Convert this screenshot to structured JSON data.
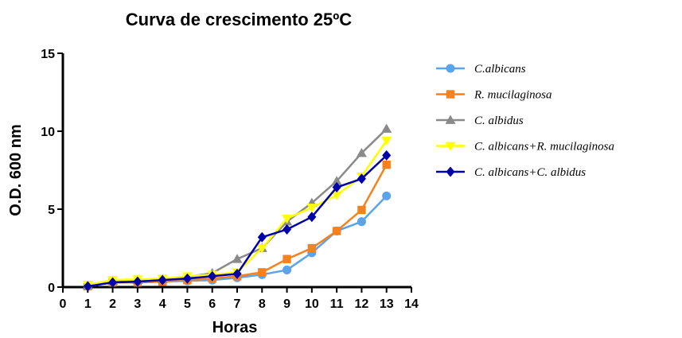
{
  "chart_data": {
    "type": "line",
    "title": "Curva de crescimento 25ºC",
    "xlabel": "Horas",
    "ylabel": "O.D. 600 nm",
    "xlim": [
      0,
      14
    ],
    "ylim": [
      0,
      15
    ],
    "x_ticks": [
      0,
      1,
      2,
      3,
      4,
      5,
      6,
      7,
      8,
      9,
      10,
      11,
      12,
      13,
      14
    ],
    "y_ticks": [
      0,
      5,
      10,
      15
    ],
    "grid": false,
    "legend_position": "right",
    "x": [
      1,
      2,
      3,
      4,
      5,
      6,
      7,
      8,
      9,
      10,
      11,
      12,
      13
    ],
    "series": [
      {
        "name": "C.albicans",
        "color": "#5ba3ea",
        "marker": "circle",
        "values": [
          0.05,
          0.3,
          0.3,
          0.35,
          0.4,
          0.45,
          0.6,
          0.8,
          1.1,
          2.2,
          3.6,
          4.2,
          5.85
        ]
      },
      {
        "name": "R. mucilaginosa",
        "color": "#f5821f",
        "marker": "square",
        "values": [
          0.05,
          0.3,
          0.3,
          0.35,
          0.45,
          0.55,
          0.7,
          0.95,
          1.8,
          2.5,
          3.6,
          4.95,
          7.85
        ]
      },
      {
        "name": "C. albidus",
        "color": "#8a8a8a",
        "marker": "triangle-up",
        "values": [
          0.1,
          0.4,
          0.45,
          0.5,
          0.65,
          0.9,
          1.8,
          2.5,
          4.2,
          5.4,
          6.8,
          8.6,
          10.15
        ]
      },
      {
        "name": "C. albicans+R. mucilaginosa",
        "color": "#ffff00",
        "marker": "triangle-down",
        "values": [
          0.15,
          0.45,
          0.5,
          0.55,
          0.7,
          0.8,
          0.95,
          2.5,
          4.4,
          5.1,
          5.9,
          7.1,
          9.4
        ]
      },
      {
        "name": "C. albicans+C. albidus",
        "color": "#0000aa",
        "marker": "diamond",
        "values": [
          0.05,
          0.3,
          0.35,
          0.45,
          0.55,
          0.7,
          0.85,
          3.2,
          3.7,
          4.5,
          6.4,
          6.95,
          8.45
        ]
      }
    ]
  }
}
